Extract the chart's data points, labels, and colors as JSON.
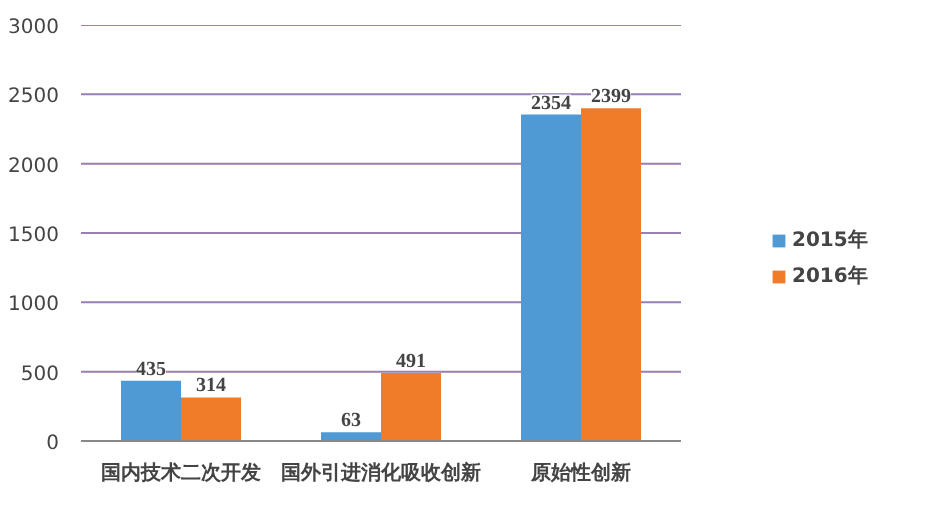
{
  "chart_data": {
    "type": "bar",
    "categories": [
      "国内技术二次开发",
      "国外引进消化吸收创新",
      "原始性创新"
    ],
    "series": [
      {
        "name": "2015年",
        "color": "#4f9ad4",
        "values": [
          435,
          63,
          2354
        ]
      },
      {
        "name": "2016年",
        "color": "#f07c2a",
        "values": [
          314,
          491,
          2399
        ]
      }
    ],
    "ylim": [
      0,
      3000
    ],
    "yticks": [
      0,
      500,
      1000,
      1500,
      2000,
      2500,
      3000
    ],
    "grid": "y",
    "legend": "right",
    "data_labels": true
  }
}
